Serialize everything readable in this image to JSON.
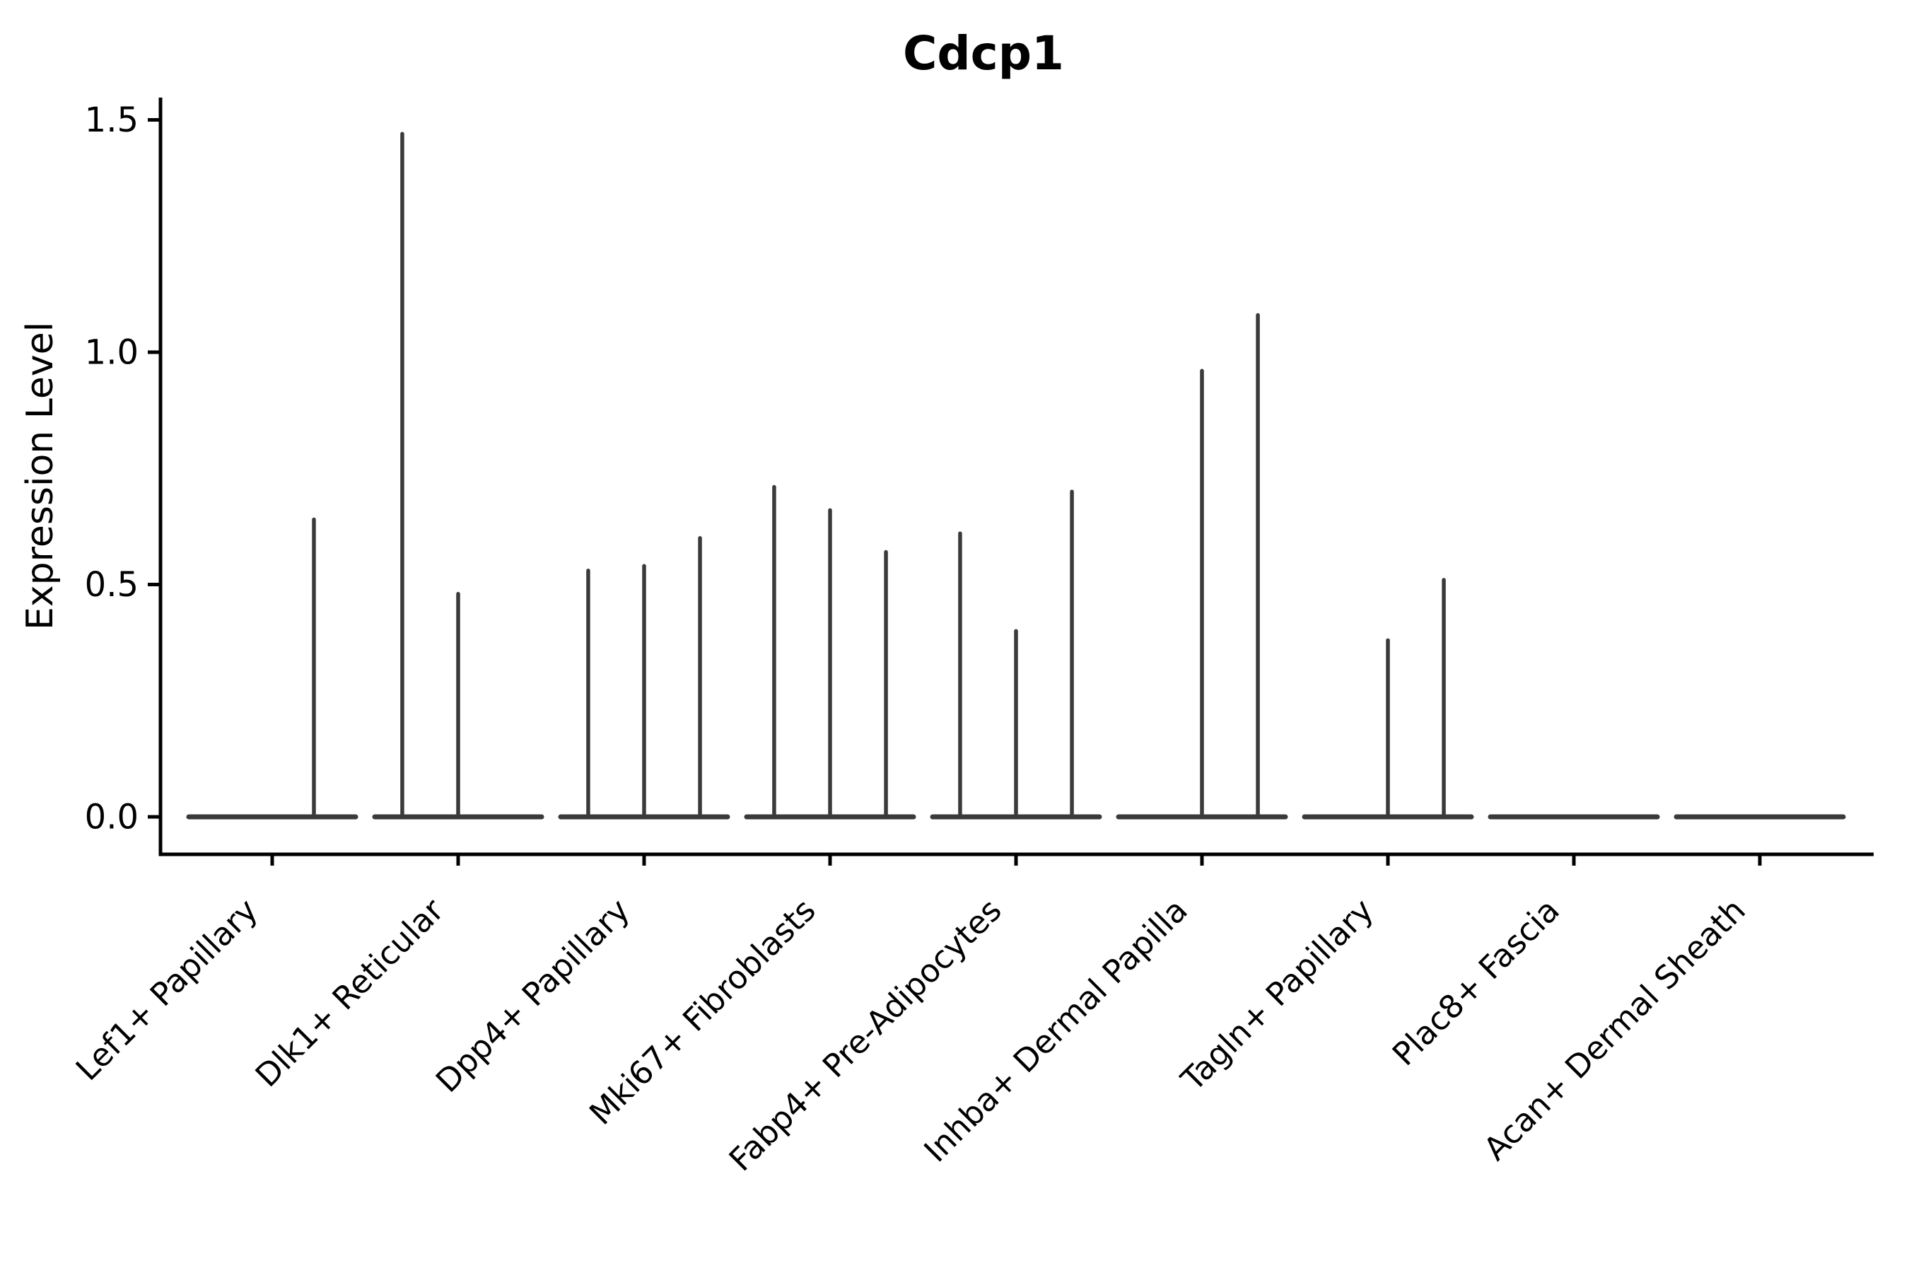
{
  "title": "Cdcp1",
  "chart_data": {
    "type": "violin",
    "title": "Cdcp1",
    "ylabel": "Expression Level",
    "xlabel": "",
    "grid": false,
    "legend": "none",
    "ylim": [
      0,
      1.5
    ],
    "ytick_labels": [
      "0.0",
      "0.5",
      "1.0",
      "1.5"
    ],
    "ytick_values": [
      0,
      0.5,
      1.0,
      1.5
    ],
    "categories": [
      "Lef1+ Papillary",
      "Dlk1+ Reticular",
      "Dpp4+ Papillary",
      "Mki67+ Fibroblasts",
      "Fabp4+ Pre-Adipocytes",
      "Inhba+ Dermal Papilla",
      "Tagln+ Papillary",
      "Plac8+ Fascia",
      "Acan+ Dermal Sheath"
    ],
    "violins": [
      {
        "category": "Lef1+ Papillary",
        "spikes": [
          {
            "offset": 0.75,
            "max": 0.64
          }
        ]
      },
      {
        "category": "Dlk1+ Reticular",
        "spikes": [
          {
            "offset": 0.165,
            "max": 1.47
          },
          {
            "offset": 0.5,
            "max": 0.48
          }
        ]
      },
      {
        "category": "Dpp4+ Papillary",
        "spikes": [
          {
            "offset": 0.165,
            "max": 0.53
          },
          {
            "offset": 0.5,
            "max": 0.54
          },
          {
            "offset": 0.835,
            "max": 0.6
          }
        ]
      },
      {
        "category": "Mki67+ Fibroblasts",
        "spikes": [
          {
            "offset": 0.165,
            "max": 0.71
          },
          {
            "offset": 0.5,
            "max": 0.66
          },
          {
            "offset": 0.835,
            "max": 0.57
          }
        ]
      },
      {
        "category": "Fabp4+ Pre-Adipocytes",
        "spikes": [
          {
            "offset": 0.165,
            "max": 0.61
          },
          {
            "offset": 0.5,
            "max": 0.4
          },
          {
            "offset": 0.835,
            "max": 0.7
          }
        ]
      },
      {
        "category": "Inhba+ Dermal Papilla",
        "spikes": [
          {
            "offset": 0.5,
            "max": 0.96
          },
          {
            "offset": 0.835,
            "max": 1.08
          }
        ]
      },
      {
        "category": "Tagln+ Papillary",
        "spikes": [
          {
            "offset": 0.5,
            "max": 0.38
          },
          {
            "offset": 0.835,
            "max": 0.51
          }
        ]
      },
      {
        "category": "Plac8+ Fascia",
        "spikes": []
      },
      {
        "category": "Acan+ Dermal Sheath",
        "spikes": []
      }
    ],
    "colors": {
      "violin": "#3a3a3a",
      "axis": "#000000",
      "text": "#000000",
      "background": "#ffffff"
    }
  }
}
